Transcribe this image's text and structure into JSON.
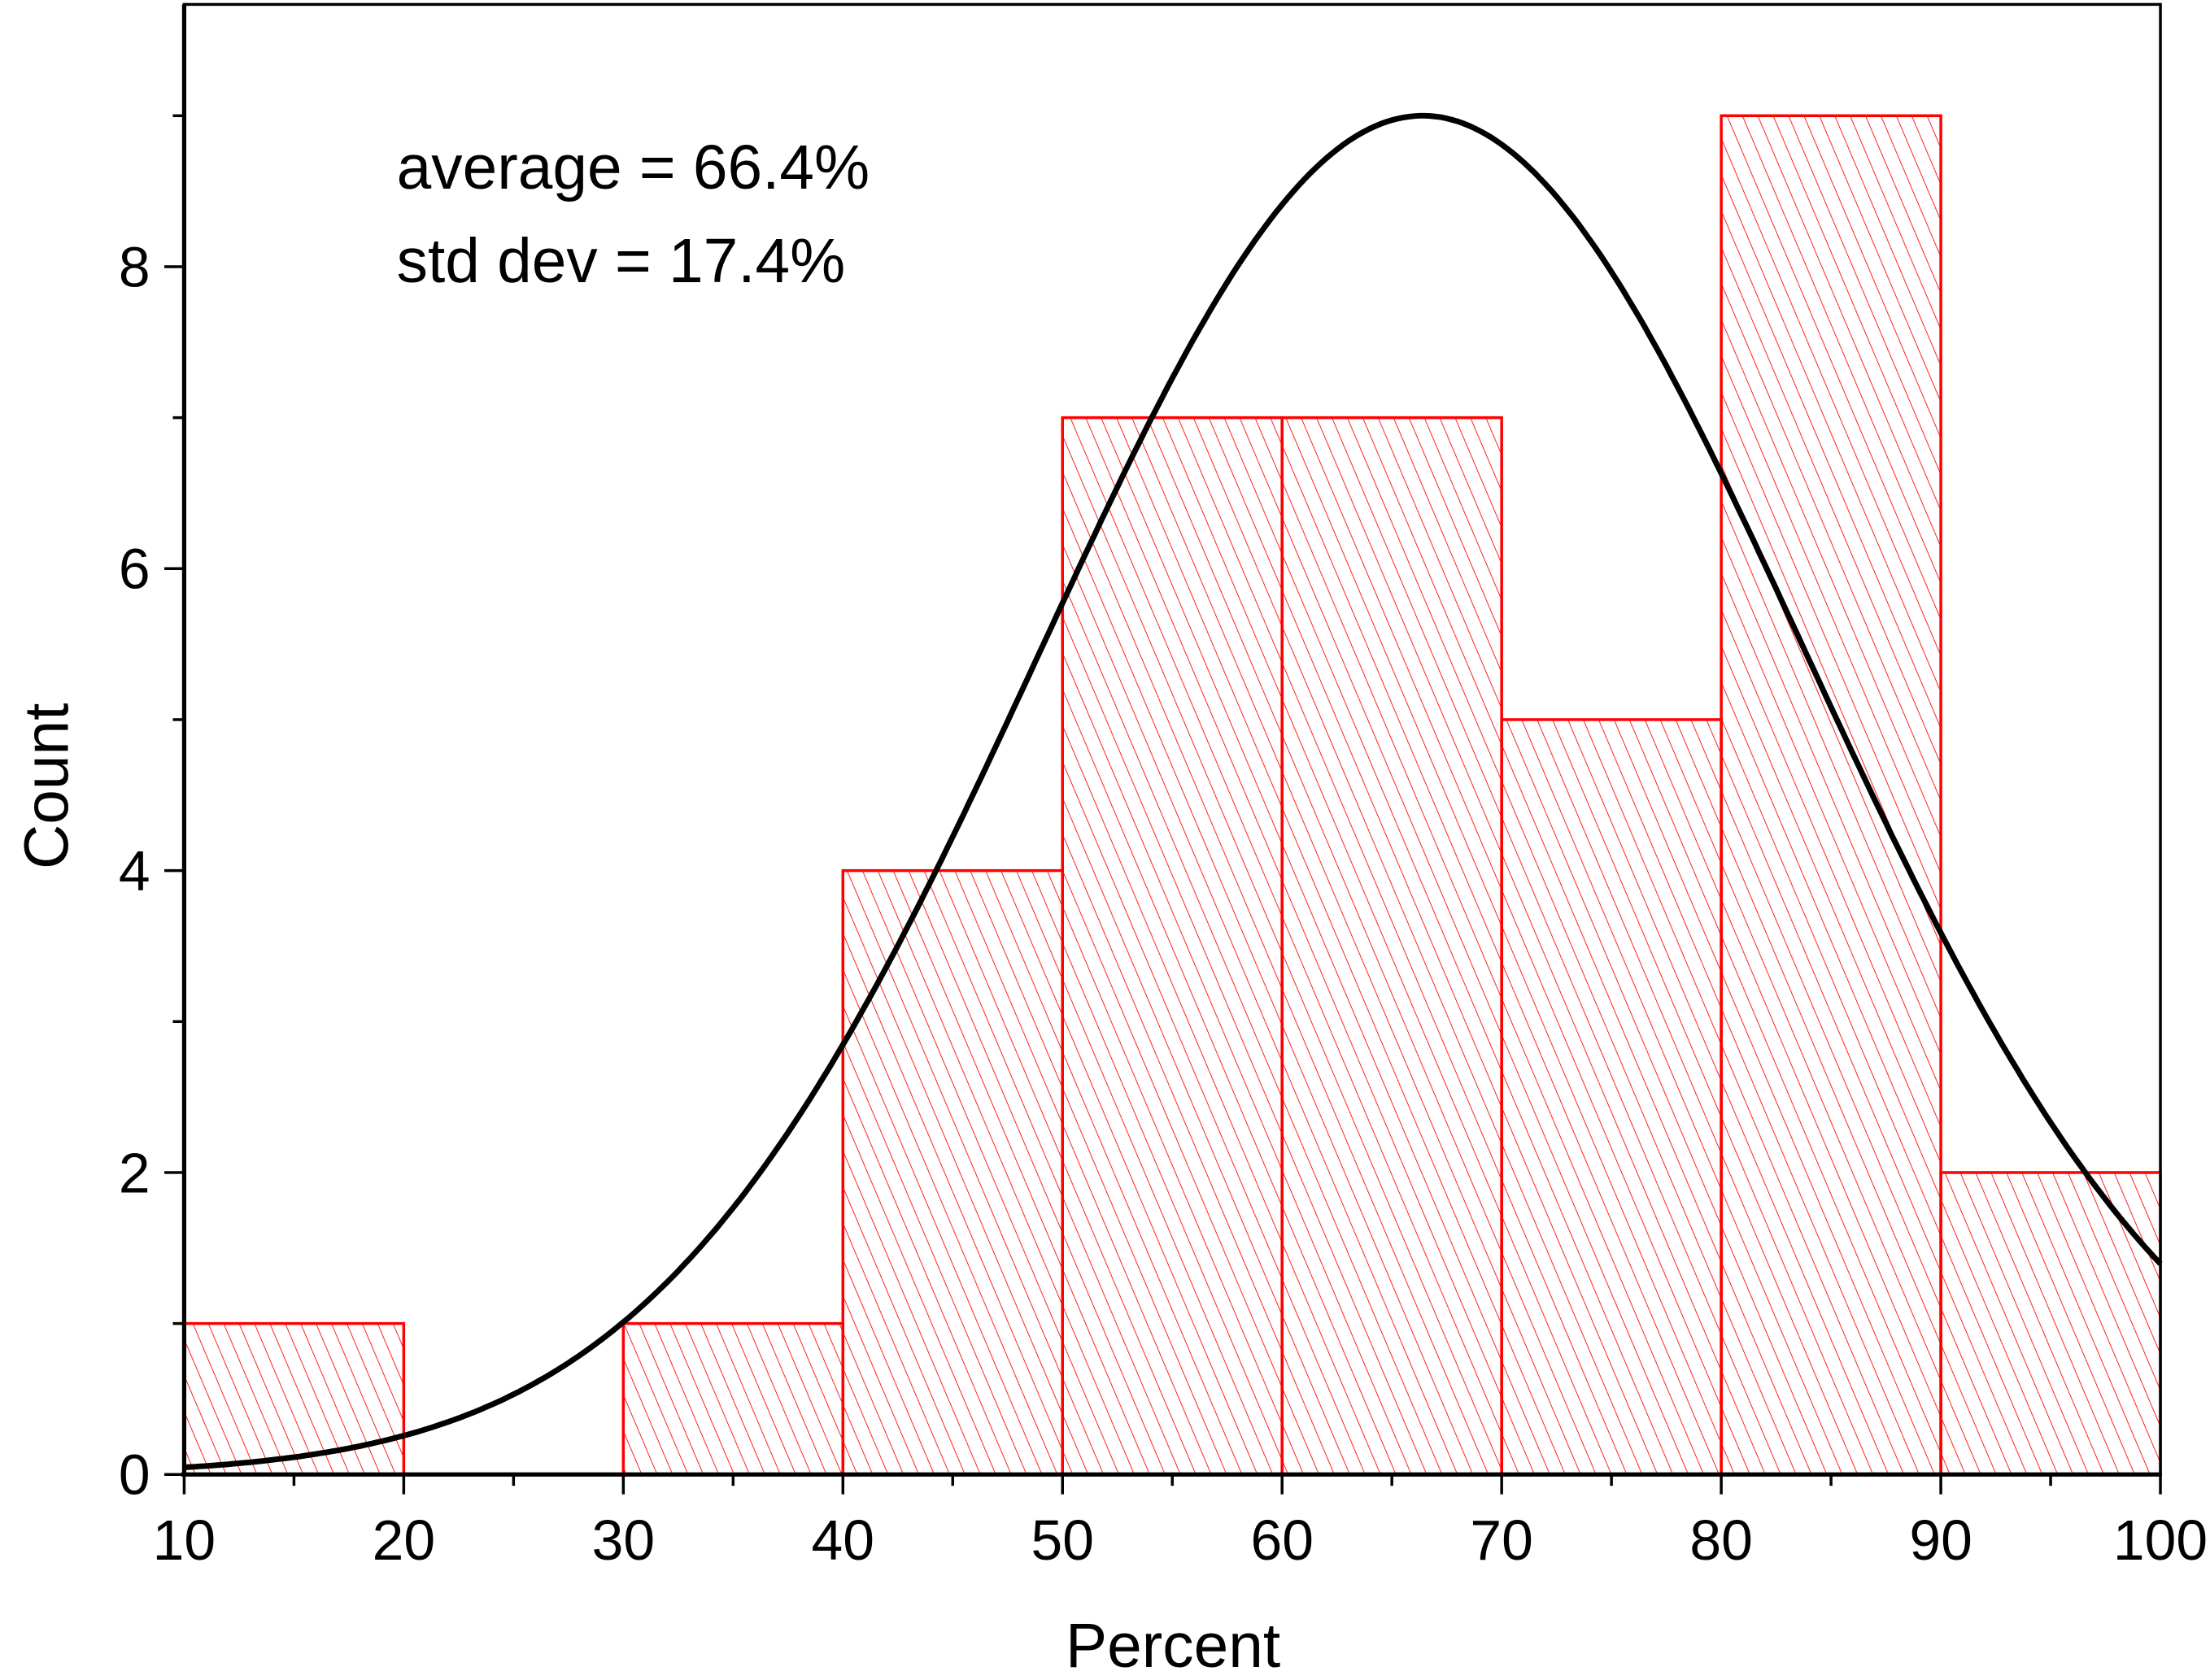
{
  "chart_data": {
    "type": "bar",
    "subtype": "histogram",
    "xlabel": "Percent",
    "ylabel": "Count",
    "xlim": [
      10,
      100
    ],
    "ylim": [
      0,
      9.75
    ],
    "xticks": [
      10,
      20,
      30,
      40,
      50,
      60,
      70,
      80,
      90,
      100
    ],
    "xtick_labels": [
      "10",
      "20",
      "30",
      "40",
      "50",
      "60",
      "70",
      "80",
      "90",
      "100"
    ],
    "yticks": [
      0,
      2,
      4,
      6,
      8
    ],
    "ytick_labels": [
      "0",
      "2",
      "4",
      "6",
      "8"
    ],
    "bins": [
      {
        "start": 10,
        "end": 20,
        "count": 1
      },
      {
        "start": 20,
        "end": 30,
        "count": 0
      },
      {
        "start": 30,
        "end": 40,
        "count": 1
      },
      {
        "start": 40,
        "end": 50,
        "count": 4
      },
      {
        "start": 50,
        "end": 60,
        "count": 7
      },
      {
        "start": 60,
        "end": 70,
        "count": 7
      },
      {
        "start": 70,
        "end": 80,
        "count": 5
      },
      {
        "start": 80,
        "end": 90,
        "count": 9
      },
      {
        "start": 90,
        "end": 100,
        "count": 2
      }
    ],
    "fit_curve": {
      "type": "normal",
      "mean": 66.4,
      "std": 17.4,
      "peak": 9
    },
    "annotations": [
      "average = 66.4%",
      "std dev = 17.4%"
    ],
    "bar_color": "#ff0000",
    "curve_color": "#000000",
    "grid": false
  }
}
